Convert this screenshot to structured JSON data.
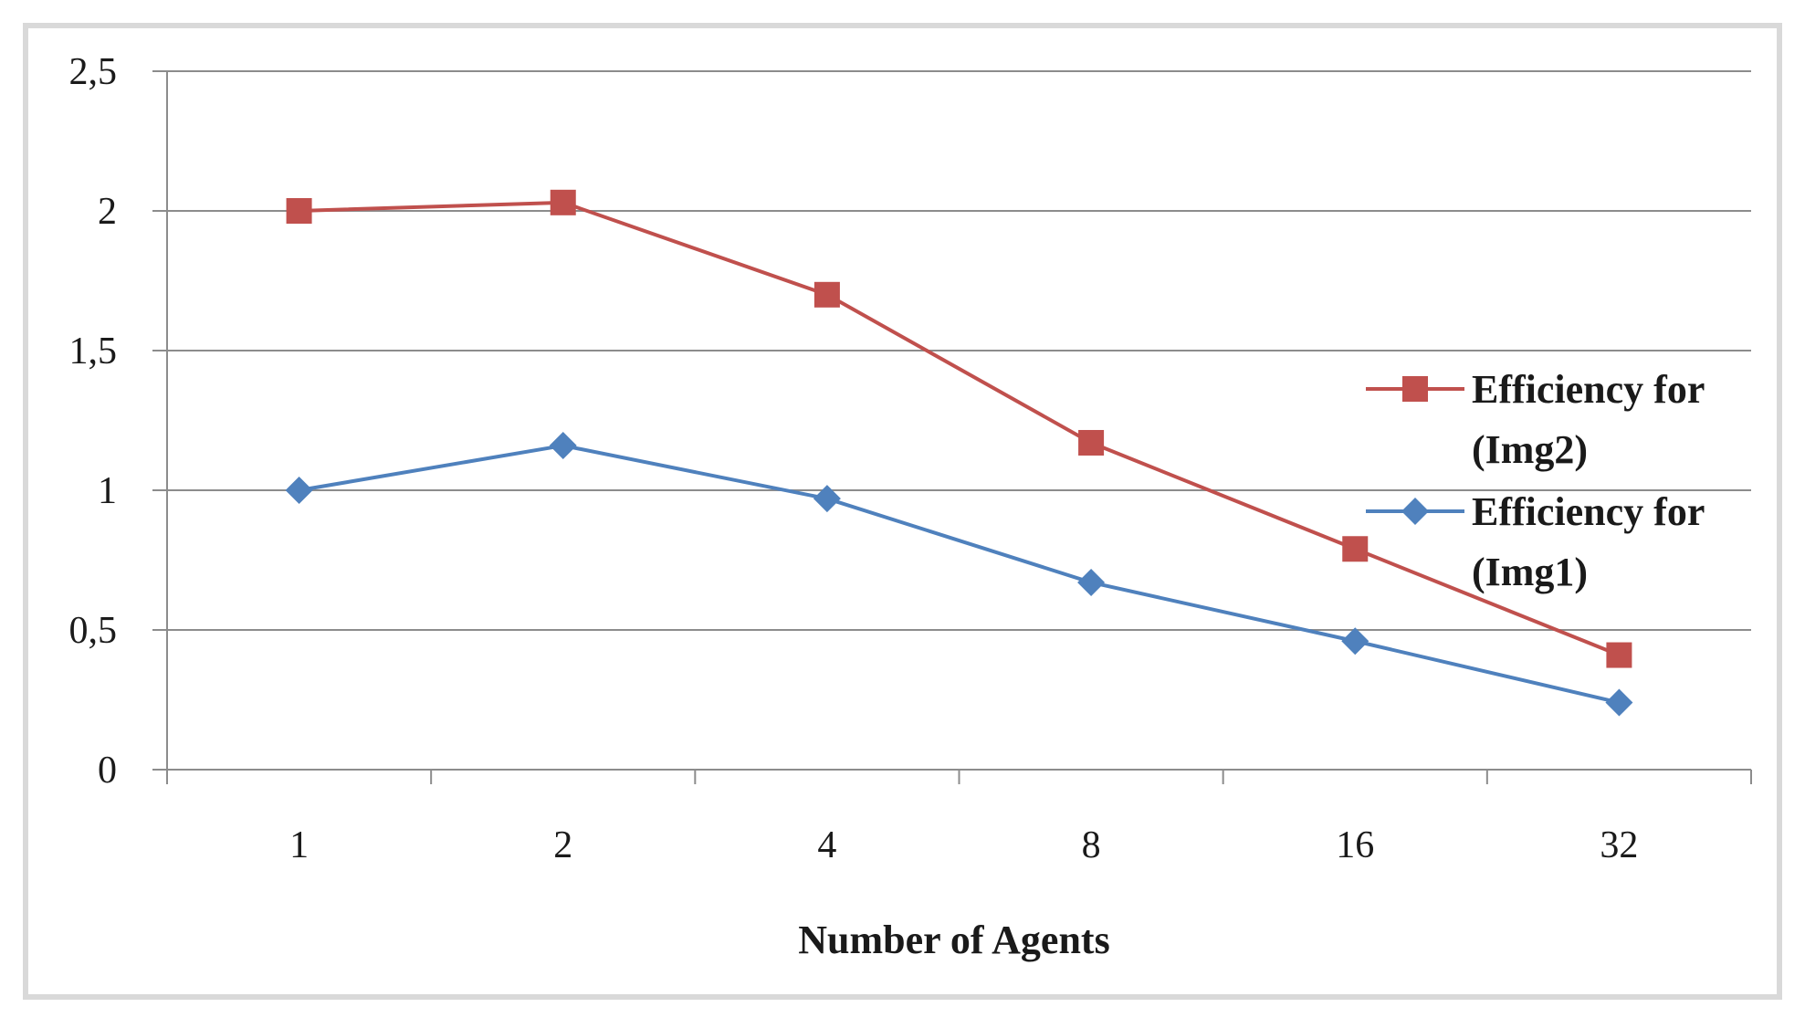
{
  "chart_data": {
    "type": "line",
    "title": "",
    "xlabel": "Number of Agents",
    "ylabel": "",
    "categories": [
      "1",
      "2",
      "4",
      "8",
      "16",
      "32"
    ],
    "ylim": [
      0,
      2.5
    ],
    "yticks": [
      "0",
      "0,5",
      "1",
      "1,5",
      "2",
      "2,5"
    ],
    "grid": "horizontal",
    "legend_position": "right",
    "series": [
      {
        "name_lines": [
          "Efficiency for",
          "(Img2)"
        ],
        "values": [
          2.0,
          2.03,
          1.7,
          1.17,
          0.79,
          0.41
        ],
        "color": "#c0504d",
        "marker": "square"
      },
      {
        "name_lines": [
          "Efficiency for",
          "(Img1)"
        ],
        "values": [
          1.0,
          1.16,
          0.97,
          0.67,
          0.46,
          0.24
        ],
        "color": "#4f81bd",
        "marker": "diamond"
      }
    ]
  }
}
